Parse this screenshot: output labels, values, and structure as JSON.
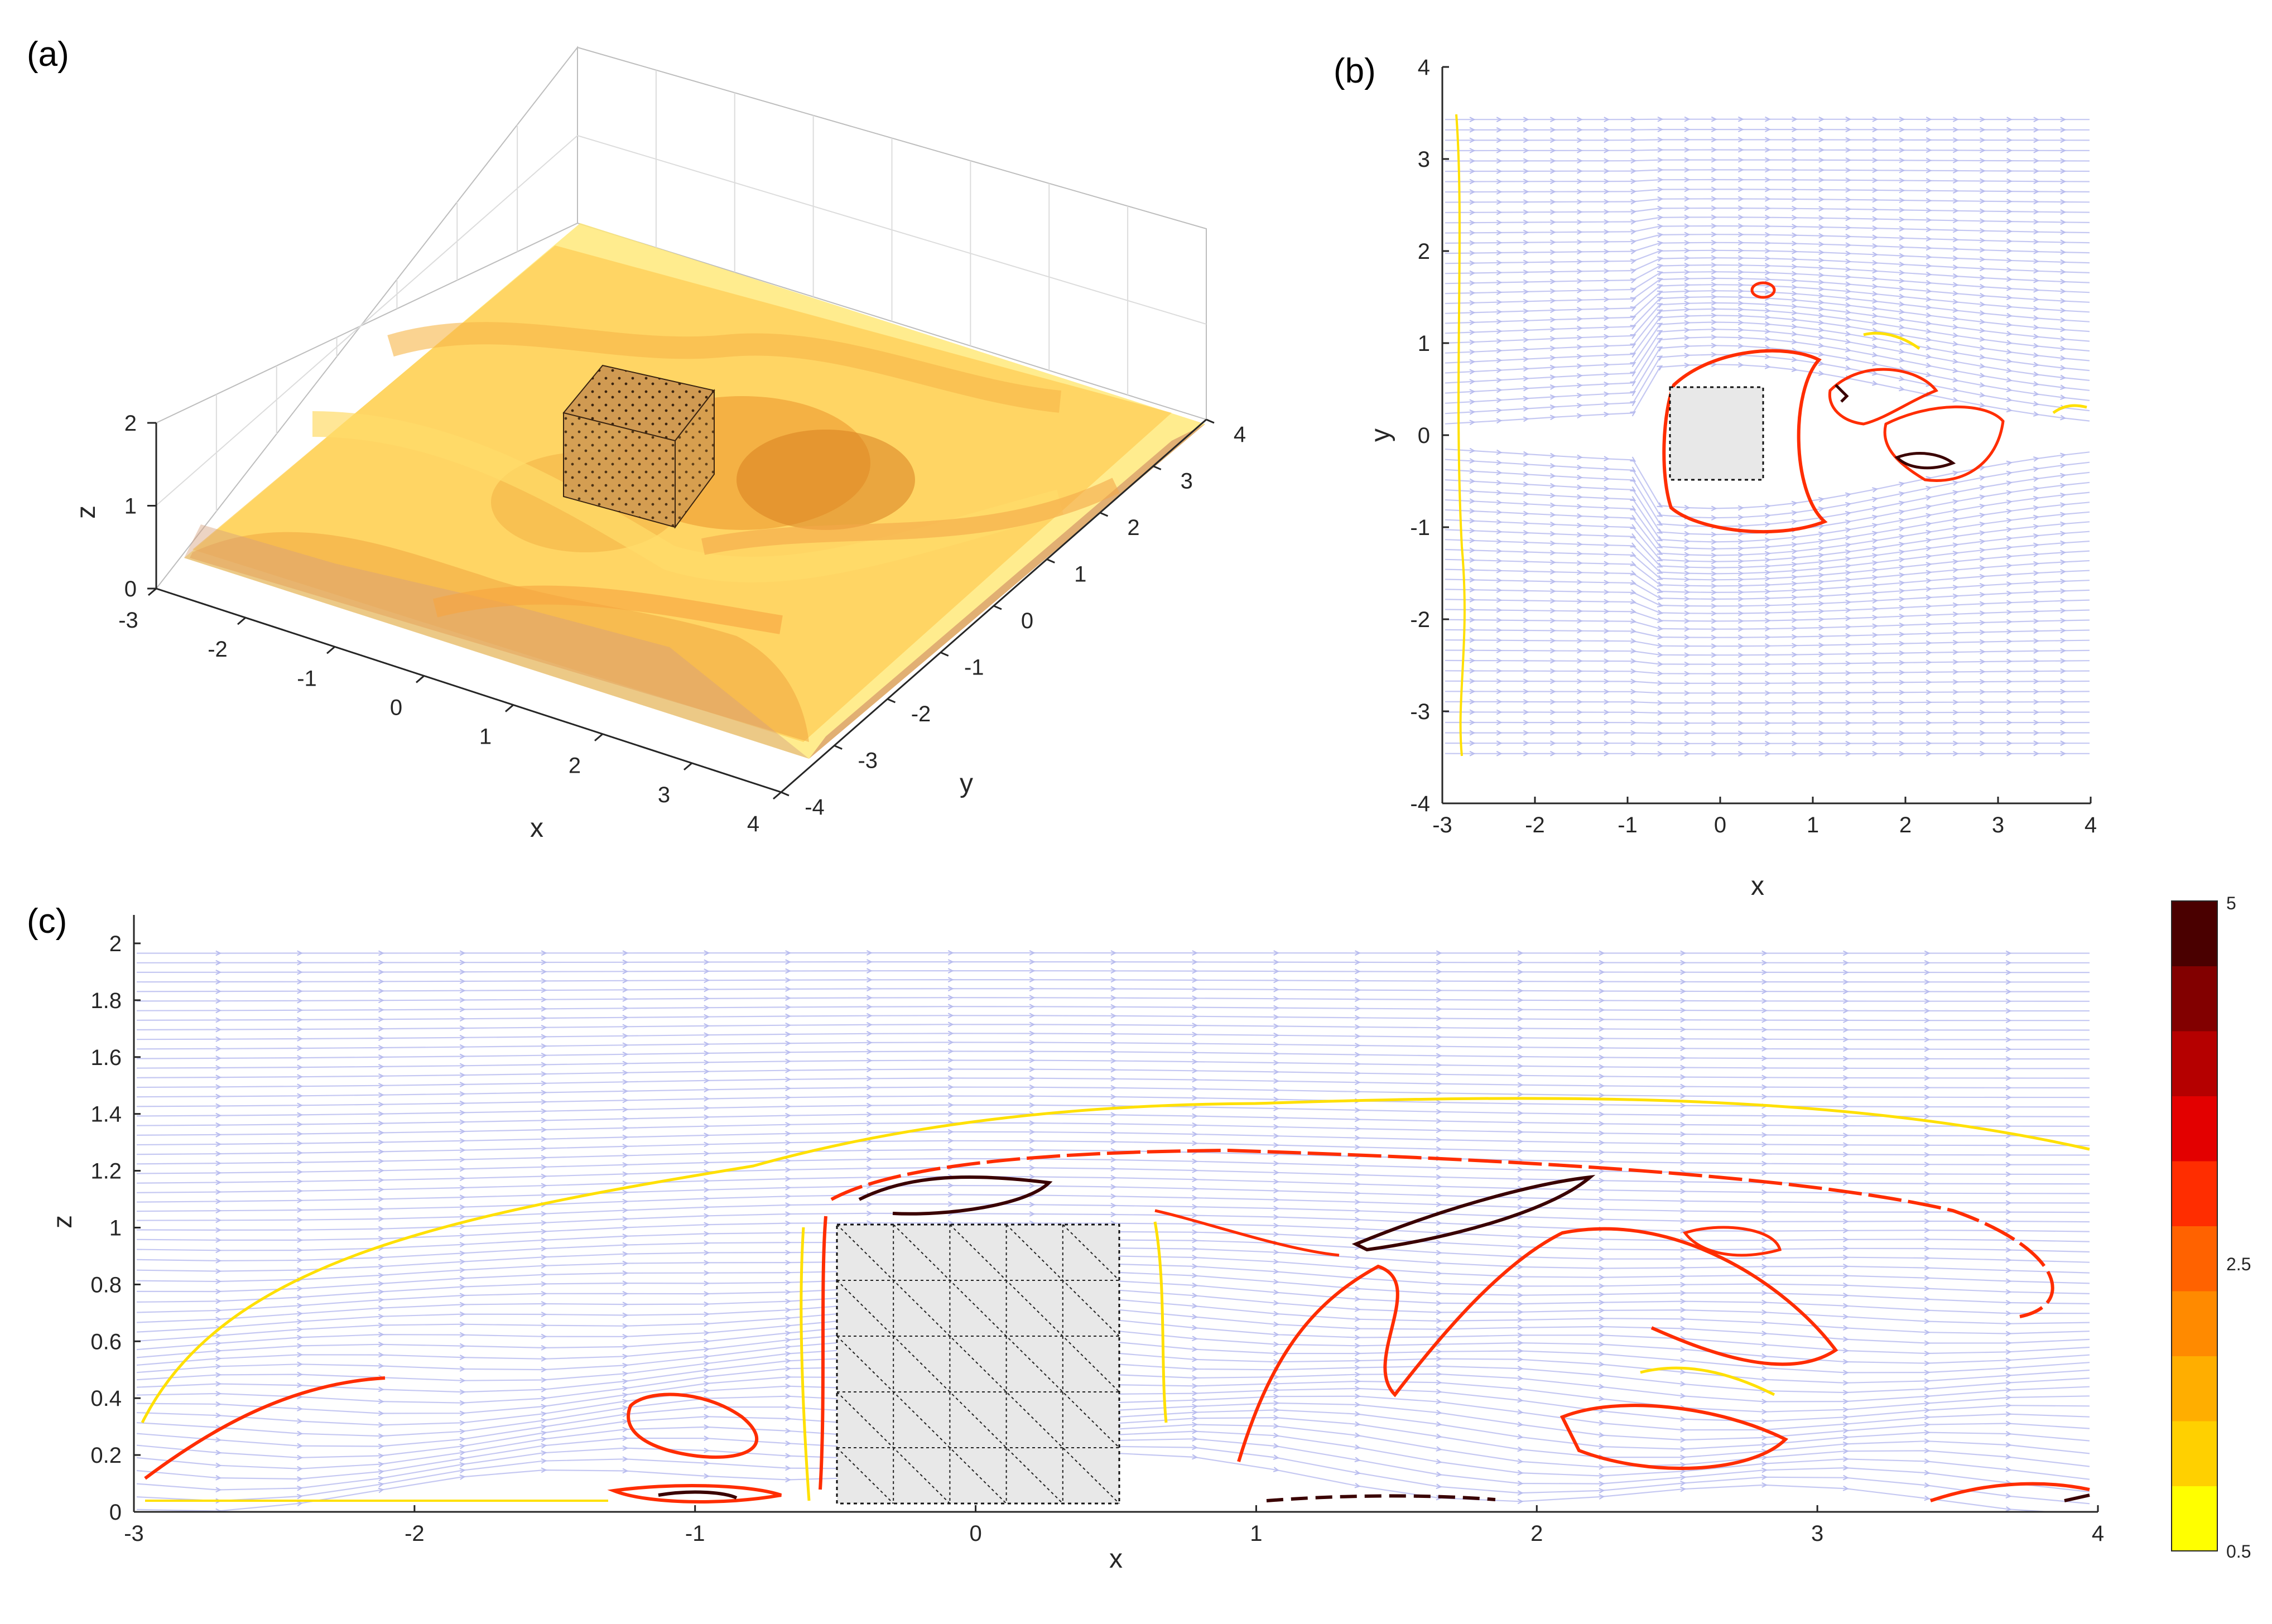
{
  "panel_labels": [
    "(a)",
    "(b)",
    "(c)"
  ],
  "chart_data": [
    {
      "panel": "(a)",
      "type": "surface3d",
      "xlabel": "x",
      "ylabel": "y",
      "zlabel": "z",
      "xlim": [
        -3,
        4
      ],
      "ylim": [
        -4,
        4
      ],
      "zlim": [
        0,
        2
      ],
      "xticks": [
        "-3",
        "-2",
        "-1",
        "0",
        "1",
        "2",
        "3",
        "4"
      ],
      "yticks": [
        "-4",
        "-3",
        "-2",
        "-1",
        "0",
        "1",
        "2",
        "3",
        "4"
      ],
      "zticks": [
        "0",
        "1",
        "2"
      ],
      "obstacle": {
        "x": [
          -0.5,
          0.5
        ],
        "y": [
          -0.5,
          0.5
        ],
        "z": [
          0,
          1
        ]
      },
      "grid": true
    },
    {
      "panel": "(b)",
      "type": "streamline_contour",
      "xlabel": "x",
      "ylabel": "y",
      "xlim": [
        -3,
        4
      ],
      "ylim": [
        -4,
        4
      ],
      "xticks": [
        "-3",
        "-2",
        "-1",
        "0",
        "1",
        "2",
        "3",
        "4"
      ],
      "yticks": [
        "-4",
        "-3",
        "-2",
        "-1",
        "0",
        "1",
        "2",
        "3",
        "4"
      ],
      "obstacle": {
        "x": [
          -0.5,
          0.5
        ],
        "y": [
          -0.5,
          0.5
        ]
      },
      "streamline_color": "#c5c8f2"
    },
    {
      "panel": "(c)",
      "type": "streamline_contour",
      "xlabel": "x",
      "ylabel": "z",
      "xlim": [
        -3,
        4
      ],
      "ylim": [
        0,
        2.1
      ],
      "xticks": [
        "-3",
        "-2",
        "-1",
        "0",
        "1",
        "2",
        "3",
        "4"
      ],
      "yticks": [
        "0",
        "0.2",
        "0.4",
        "0.6",
        "0.8",
        "1",
        "1.2",
        "1.4",
        "1.6",
        "1.8",
        "2"
      ],
      "obstacle": {
        "x": [
          -0.5,
          0.5
        ],
        "z": [
          0,
          1
        ]
      },
      "streamline_color": "#c5c8f2"
    },
    {
      "type": "colorbar",
      "range": [
        0.5,
        5
      ],
      "tick_labels": [
        "5",
        "2.5",
        "0.5"
      ],
      "colors": [
        "#ffff00",
        "#ffd000",
        "#ffae00",
        "#ff8a00",
        "#ff6200",
        "#ff2d00",
        "#e30000",
        "#b50000",
        "#820000",
        "#4a0000"
      ]
    }
  ]
}
